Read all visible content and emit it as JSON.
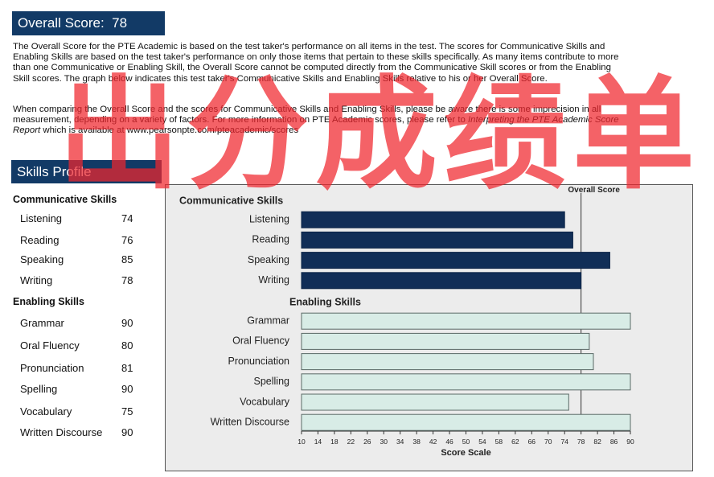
{
  "overall": {
    "label": "Overall Score:",
    "score": "78"
  },
  "paragraphs": {
    "p1": "The Overall Score for the PTE Academic is based on the test taker's performance on all items in the test. The scores for Communicative Skills and Enabling Skills are based on the test taker's performance on only those items that pertain to these skills specifically. As many items contribute to more than one Communicative or Enabling Skill, the Overall Score cannot be computed directly from the Communicative Skill scores or from the Enabling Skill scores. The graph below indicates this test taker's Communicative Skills and Enabling Skills relative to his or her Overall Score.",
    "p2_a": "When comparing the Overall Score and the scores for Communicative Skills and Enabling Skills, please be aware there is some imprecision in all measurement, depending on a variety of factors. For more information on PTE Academic scores, please refer to",
    "p2_b": "Interpreting the PTE Academic Score Report",
    "p2_c": "which is available at www.pearsonpte.com/pteacademic/scores"
  },
  "skills_profile": {
    "title": "Skills Profile",
    "communicative": {
      "heading": "Communicative Skills",
      "items": [
        {
          "label": "Listening",
          "value": "74"
        },
        {
          "label": "Reading",
          "value": "76"
        },
        {
          "label": "Speaking",
          "value": "85"
        },
        {
          "label": "Writing",
          "value": "78"
        }
      ]
    },
    "enabling": {
      "heading": "Enabling Skills",
      "items": [
        {
          "label": "Grammar",
          "value": "90"
        },
        {
          "label": "Oral Fluency",
          "value": "80"
        },
        {
          "label": "Pronunciation",
          "value": "81"
        },
        {
          "label": "Spelling",
          "value": "90"
        },
        {
          "label": "Vocabulary",
          "value": "75"
        },
        {
          "label": "Written Discourse",
          "value": "90"
        }
      ]
    }
  },
  "watermark": "出分成绩单",
  "colors": {
    "header_bg": "#123a66",
    "communicative_bar": "#112e57",
    "enabling_bar": "#d8ece6",
    "watermark": "#f0262e",
    "panel_bg": "#ececec"
  },
  "chart_data": {
    "type": "bar",
    "orientation": "horizontal",
    "group_labels": [
      "Communicative Skills",
      "Enabling Skills"
    ],
    "overall_label": "Overall Score",
    "overall_value": 78,
    "xlabel": "Score Scale",
    "xlim": [
      10,
      90
    ],
    "xticks": [
      10,
      14,
      18,
      22,
      26,
      30,
      34,
      38,
      42,
      46,
      50,
      54,
      58,
      62,
      66,
      70,
      74,
      78,
      82,
      86,
      90
    ],
    "series": [
      {
        "group": "Communicative Skills",
        "categories": [
          "Listening",
          "Reading",
          "Speaking",
          "Writing"
        ],
        "values": [
          74,
          76,
          85,
          78
        ]
      },
      {
        "group": "Enabling Skills",
        "categories": [
          "Grammar",
          "Oral Fluency",
          "Pronunciation",
          "Spelling",
          "Vocabulary",
          "Written Discourse"
        ],
        "values": [
          90,
          80,
          81,
          90,
          75,
          90
        ]
      }
    ]
  }
}
